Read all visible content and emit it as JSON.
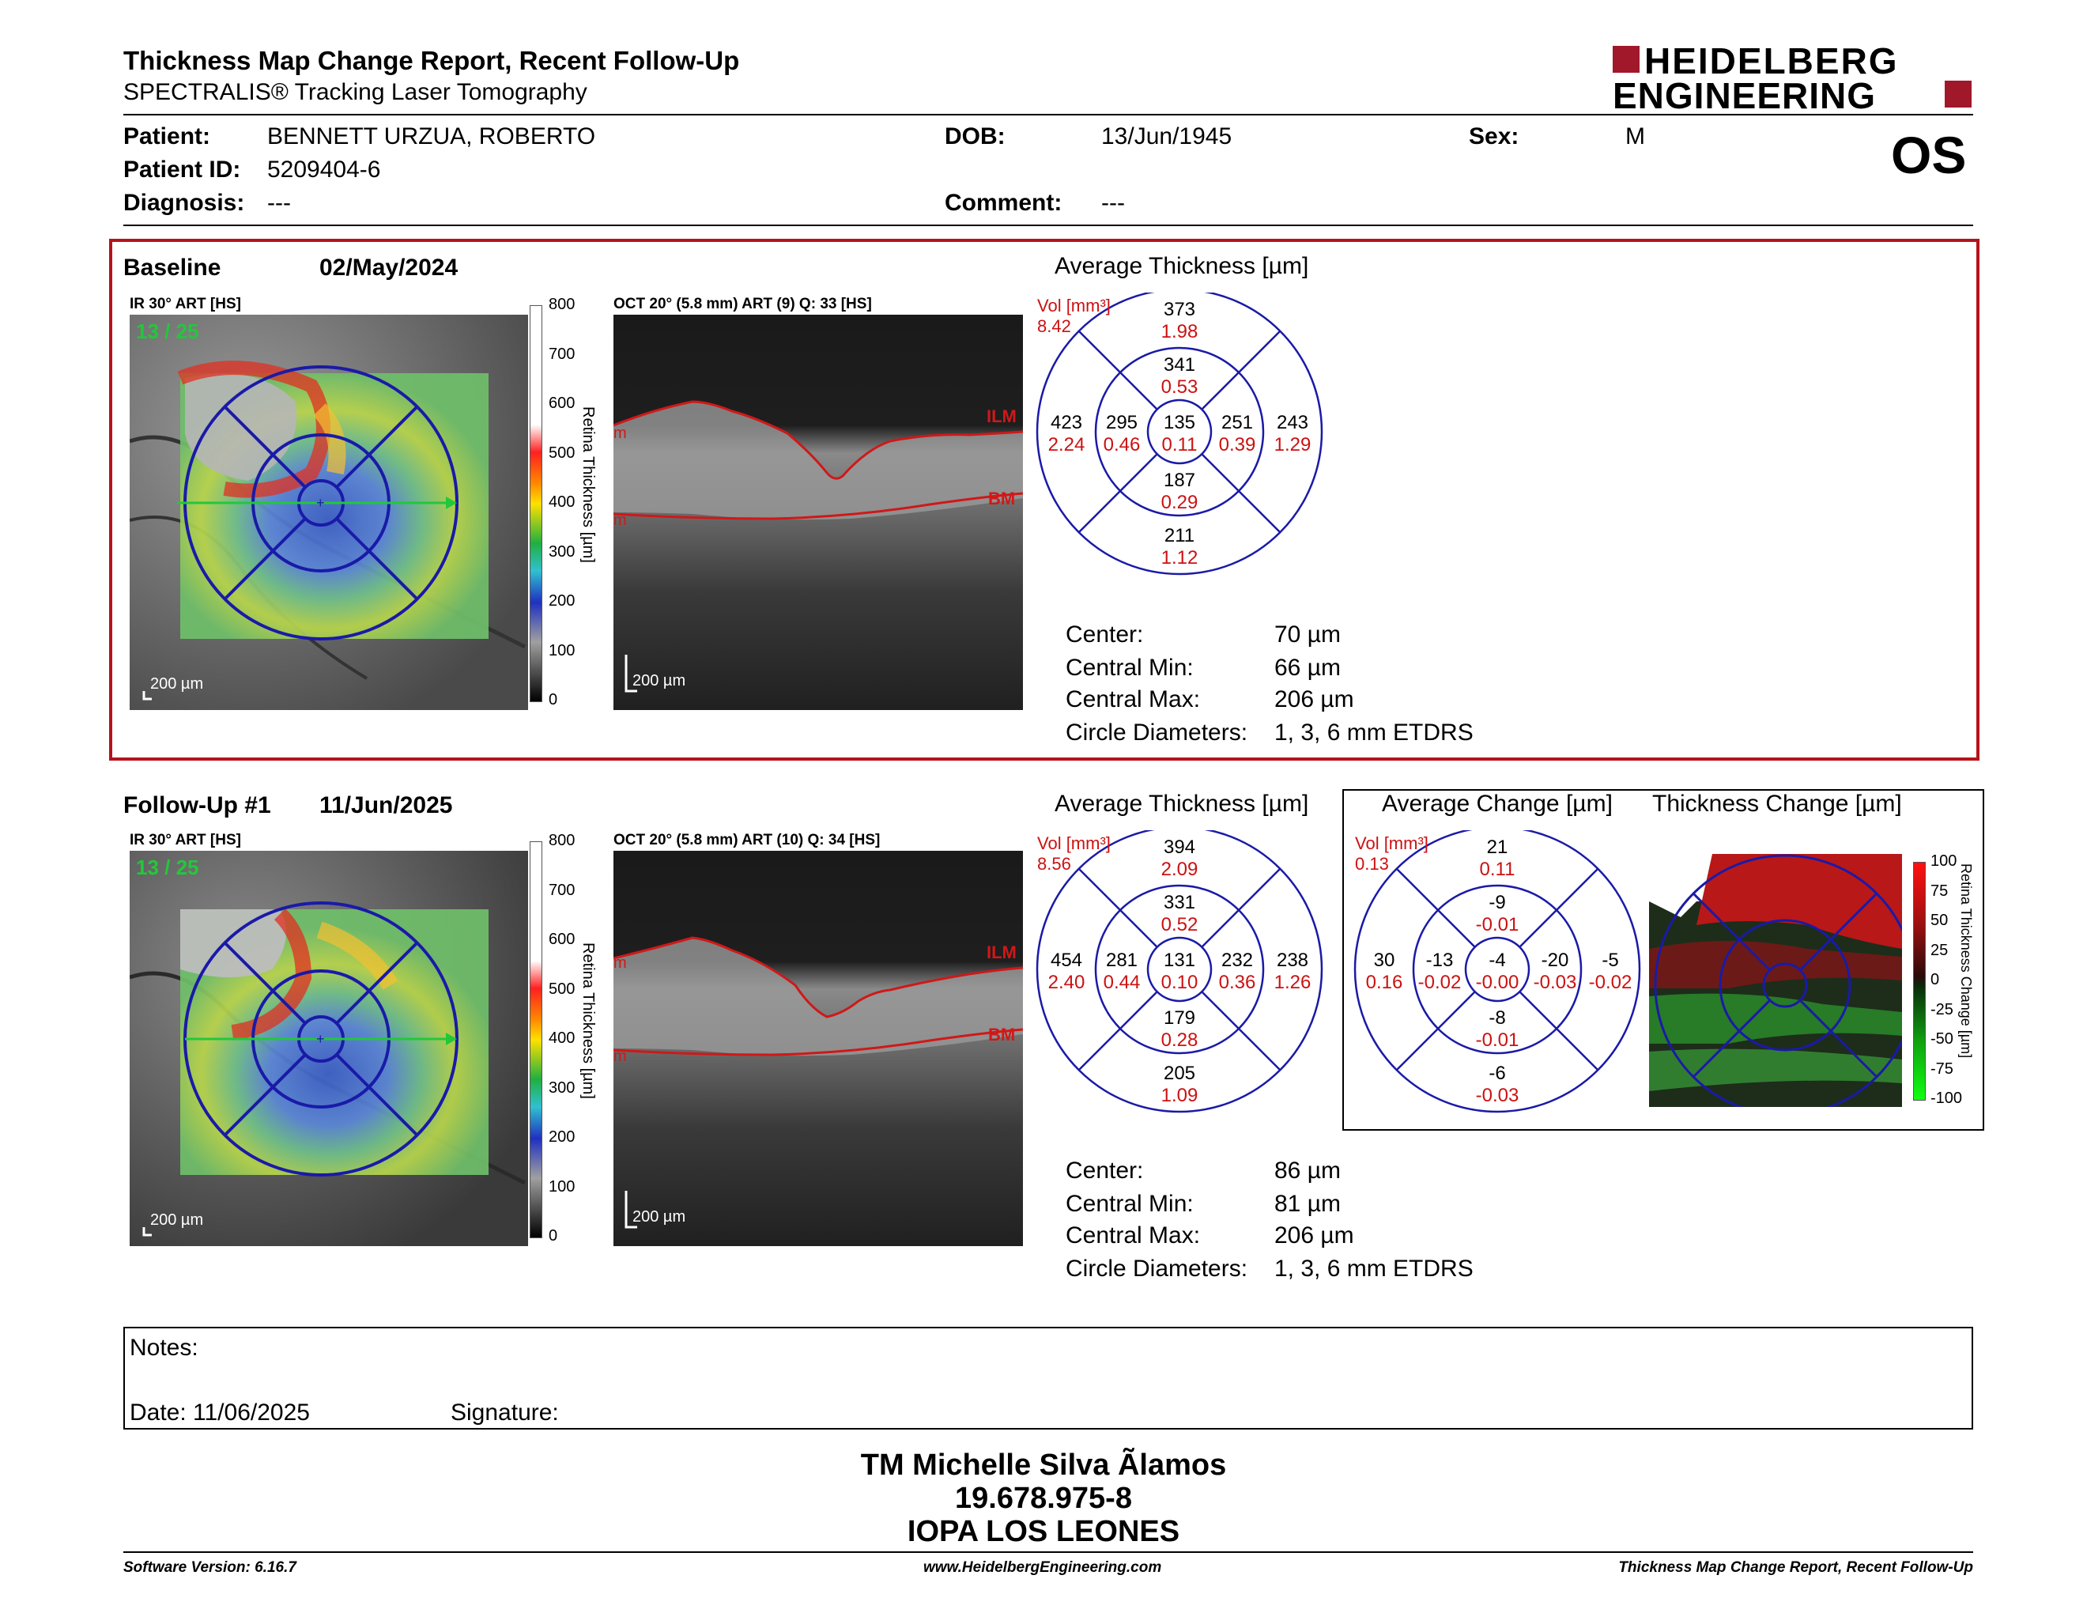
{
  "header": {
    "title": "Thickness Map Change Report, Recent Follow-Up",
    "subtitle": "SPECTRALIS® Tracking Laser Tomography",
    "logo_line1": "HEIDELBERG",
    "logo_line2": "ENGINEERING",
    "eye": "OS"
  },
  "patient": {
    "patient_label": "Patient:",
    "patient_value": "BENNETT URZUA, ROBERTO",
    "id_label": "Patient ID:",
    "id_value": "5209404-6",
    "diagnosis_label": "Diagnosis:",
    "diagnosis_value": "---",
    "dob_label": "DOB:",
    "dob_value": "13/Jun/1945",
    "comment_label": "Comment:",
    "comment_value": "---",
    "sex_label": "Sex:",
    "sex_value": "M"
  },
  "baseline": {
    "label": "Baseline",
    "date": "02/May/2024",
    "ir_label": "IR 30° ART [HS]",
    "frame": "13 / 25",
    "oct_label": "OCT 20° (5.8 mm) ART (9) Q: 33 [HS]",
    "scale": "200 µm",
    "scale_ticks": [
      "800",
      "700",
      "600",
      "500",
      "400",
      "300",
      "200",
      "100",
      "0"
    ],
    "scale_title": "Retina Thickness [µm]",
    "ilm": "ILM",
    "bm": "BM",
    "avg_title": "Average Thickness [µm]",
    "vol_label": "Vol [mm³]",
    "vol_value": "8.42",
    "etdrs": {
      "center": {
        "t": "135",
        "v": "0.11"
      },
      "inner_sup": {
        "t": "341",
        "v": "0.53"
      },
      "inner_inf": {
        "t": "187",
        "v": "0.29"
      },
      "inner_nas": {
        "t": "295",
        "v": "0.46"
      },
      "inner_temp": {
        "t": "251",
        "v": "0.39"
      },
      "outer_sup": {
        "t": "373",
        "v": "1.98"
      },
      "outer_inf": {
        "t": "211",
        "v": "1.12"
      },
      "outer_nas": {
        "t": "423",
        "v": "2.24"
      },
      "outer_temp": {
        "t": "243",
        "v": "1.29"
      }
    },
    "stats": {
      "center_label": "Center:",
      "center": "70 µm",
      "min_label": "Central Min:",
      "min": "66 µm",
      "max_label": "Central Max:",
      "max": "206 µm",
      "diam_label": "Circle Diameters:",
      "diam": "1, 3, 6 mm ETDRS"
    }
  },
  "followup": {
    "label": "Follow-Up #1",
    "date": "11/Jun/2025",
    "ir_label": "IR 30° ART [HS]",
    "frame": "13 / 25",
    "oct_label": "OCT 20° (5.8 mm) ART (10) Q: 34 [HS]",
    "scale": "200 µm",
    "scale_ticks": [
      "800",
      "700",
      "600",
      "500",
      "400",
      "300",
      "200",
      "100",
      "0"
    ],
    "scale_title": "Retina Thickness [µm]",
    "ilm": "ILM",
    "bm": "BM",
    "avg_title": "Average Thickness [µm]",
    "vol_label": "Vol [mm³]",
    "vol_value": "8.56",
    "etdrs": {
      "center": {
        "t": "131",
        "v": "0.10"
      },
      "inner_sup": {
        "t": "331",
        "v": "0.52"
      },
      "inner_inf": {
        "t": "179",
        "v": "0.28"
      },
      "inner_nas": {
        "t": "281",
        "v": "0.44"
      },
      "inner_temp": {
        "t": "232",
        "v": "0.36"
      },
      "outer_sup": {
        "t": "394",
        "v": "2.09"
      },
      "outer_inf": {
        "t": "205",
        "v": "1.09"
      },
      "outer_nas": {
        "t": "454",
        "v": "2.40"
      },
      "outer_temp": {
        "t": "238",
        "v": "1.26"
      }
    },
    "change_title": "Average Change [µm]",
    "change_vol_label": "Vol [mm³]",
    "change_vol_value": "0.13",
    "change": {
      "center": {
        "t": "-4",
        "v": "-0.00"
      },
      "inner_sup": {
        "t": "-9",
        "v": "-0.01"
      },
      "inner_inf": {
        "t": "-8",
        "v": "-0.01"
      },
      "inner_nas": {
        "t": "-13",
        "v": "-0.02"
      },
      "inner_temp": {
        "t": "-20",
        "v": "-0.03"
      },
      "outer_sup": {
        "t": "21",
        "v": "0.11"
      },
      "outer_inf": {
        "t": "-6",
        "v": "-0.03"
      },
      "outer_nas": {
        "t": "30",
        "v": "0.16"
      },
      "outer_temp": {
        "t": "-5",
        "v": "-0.02"
      }
    },
    "thick_change_title": "Thickness Change [µm]",
    "change_ticks": [
      "100",
      "75",
      "50",
      "25",
      "0",
      "-25",
      "-50",
      "-75",
      "-100"
    ],
    "change_scale_title": "Retina Thickness Change [µm]",
    "stats": {
      "center_label": "Center:",
      "center": "86 µm",
      "min_label": "Central Min:",
      "min": "81 µm",
      "max_label": "Central Max:",
      "max": "206 µm",
      "diam_label": "Circle Diameters:",
      "diam": "1, 3, 6 mm ETDRS"
    }
  },
  "notes": {
    "notes_label": "Notes:",
    "date_label": "Date: 11/06/2025",
    "signature_label": "Signature:"
  },
  "signer": {
    "name": "TM Michelle Silva Ãlamos",
    "id": "19.678.975-8",
    "org": "IOPA LOS LEONES"
  },
  "footer": {
    "left": "Software Version: 6.16.7",
    "center": "www.HeidelbergEngineering.com",
    "right": "Thickness Map Change Report, Recent Follow-Up"
  },
  "colors": {
    "accent_red": "#b5121b",
    "value_red": "#cc1111",
    "etdrs_blue": "#1a1aa8",
    "logo_red": "#a0182a"
  }
}
